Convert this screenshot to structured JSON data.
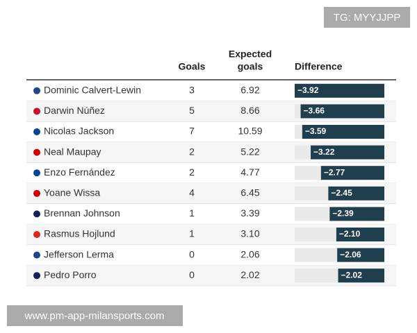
{
  "watermark_top": "TG: MYYJJPP",
  "watermark_bottom": "www.pm-app-milansports.com",
  "table": {
    "columns": [
      "Goals",
      "Expected",
      "goals",
      "Difference"
    ],
    "rows": [
      {
        "player": "Dominic Calvert-Lewin",
        "goals": "3",
        "expected_goals": "6.92",
        "difference": -3.92,
        "difference_label": "−3.92"
      },
      {
        "player": "Darwin Núñez",
        "goals": "5",
        "expected_goals": "8.66",
        "difference": -3.66,
        "difference_label": "−3.66"
      },
      {
        "player": "Nicolas Jackson",
        "goals": "7",
        "expected_goals": "10.59",
        "difference": -3.59,
        "difference_label": "−3.59"
      },
      {
        "player": "Neal Maupay",
        "goals": "2",
        "expected_goals": "5.22",
        "difference": -3.22,
        "difference_label": "−3.22"
      },
      {
        "player": "Enzo Fernández",
        "goals": "2",
        "expected_goals": "4.77",
        "difference": -2.77,
        "difference_label": "−2.77"
      },
      {
        "player": "Yoane Wissa",
        "goals": "4",
        "expected_goals": "6.45",
        "difference": -2.45,
        "difference_label": "−2.45"
      },
      {
        "player": "Brennan Johnson",
        "goals": "1",
        "expected_goals": "3.39",
        "difference": -2.39,
        "difference_label": "−2.39"
      },
      {
        "player": "Rasmus Hojlund",
        "goals": "1",
        "expected_goals": "3.10",
        "difference": -2.1,
        "difference_label": "−2.10"
      },
      {
        "player": "Jefferson Lerma",
        "goals": "0",
        "expected_goals": "2.06",
        "difference": -2.06,
        "difference_label": "−2.06"
      },
      {
        "player": "Pedro Porro",
        "goals": "0",
        "expected_goals": "2.02",
        "difference": -2.02,
        "difference_label": "−2.02"
      }
    ]
  }
}
